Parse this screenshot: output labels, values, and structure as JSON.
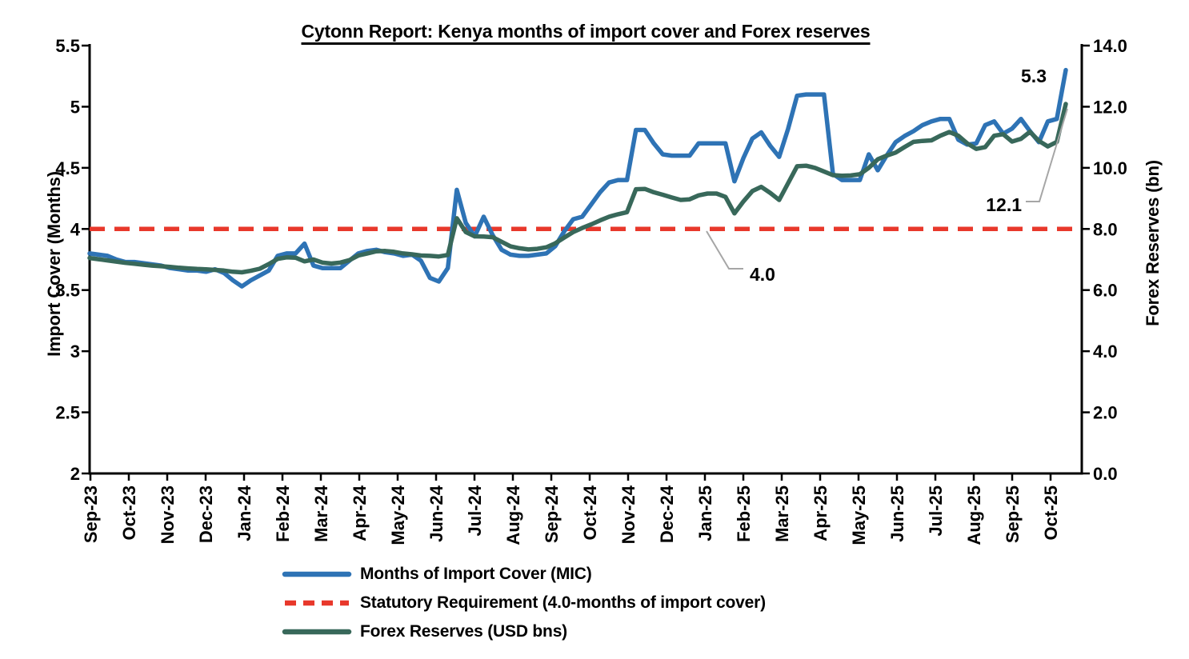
{
  "title": "Cytonn Report: Kenya months of import cover and Forex reserves",
  "chart_data": {
    "type": "line",
    "title": "Cytonn Report: Kenya months of import cover and Forex reserves",
    "x_frequency": "weekly",
    "x_categories_monthly": [
      "Sep-23",
      "Oct-23",
      "Nov-23",
      "Dec-23",
      "Jan-24",
      "Feb-24",
      "Mar-24",
      "Apr-24",
      "May-24",
      "Jun-24",
      "Jul-24",
      "Aug-24",
      "Sep-24",
      "Oct-24",
      "Nov-24",
      "Dec-24",
      "Jan-25",
      "Feb-25",
      "Mar-25",
      "Apr-25",
      "May-25",
      "Jun-25",
      "Jul-25",
      "Aug-25",
      "Sep-25",
      "Oct-25"
    ],
    "left_axis": {
      "label": "Import Cover (Months)",
      "min": 2,
      "max": 5.5,
      "ticks": [
        "5.5",
        "5",
        "4.5",
        "4",
        "3.5",
        "3",
        "2.5",
        "2"
      ]
    },
    "right_axis": {
      "label": "Forex Reserves (bn)",
      "min": 0,
      "max": 14,
      "ticks": [
        "14.0",
        "12.0",
        "10.0",
        "8.0",
        "6.0",
        "4.0",
        "2.0",
        "0.0"
      ]
    },
    "grid": false,
    "legend_position": "bottom",
    "series": [
      {
        "name": "Months of Import Cover (MIC)",
        "axis": "left",
        "color": "#2E73B5",
        "style": "solid",
        "values": [
          3.8,
          3.79,
          3.78,
          3.75,
          3.73,
          3.73,
          3.72,
          3.71,
          3.7,
          3.68,
          3.67,
          3.66,
          3.66,
          3.65,
          3.67,
          3.64,
          3.58,
          3.53,
          3.58,
          3.62,
          3.66,
          3.78,
          3.8,
          3.8,
          3.88,
          3.7,
          3.68,
          3.68,
          3.68,
          3.74,
          3.8,
          3.82,
          3.83,
          3.81,
          3.8,
          3.78,
          3.79,
          3.74,
          3.6,
          3.57,
          3.68,
          4.32,
          4.05,
          3.94,
          4.1,
          3.95,
          3.83,
          3.79,
          3.78,
          3.78,
          3.79,
          3.8,
          3.86,
          3.98,
          4.08,
          4.1,
          4.2,
          4.3,
          4.38,
          4.4,
          4.4,
          4.81,
          4.81,
          4.7,
          4.61,
          4.6,
          4.6,
          4.6,
          4.7,
          4.7,
          4.7,
          4.7,
          4.39,
          4.58,
          4.74,
          4.79,
          4.68,
          4.59,
          4.82,
          5.09,
          5.1,
          5.1,
          5.1,
          4.45,
          4.4,
          4.4,
          4.4,
          4.61,
          4.48,
          4.6,
          4.71,
          4.76,
          4.8,
          4.85,
          4.88,
          4.9,
          4.9,
          4.73,
          4.69,
          4.7,
          4.85,
          4.88,
          4.78,
          4.82,
          4.9,
          4.8,
          4.71,
          4.88,
          4.9,
          5.3
        ]
      },
      {
        "name": "Statutory Requirement (4.0-months of import cover)",
        "axis": "left",
        "color": "#E8382B",
        "style": "dashed",
        "constant": 4.0
      },
      {
        "name": "Forex Reserves (USD bns)",
        "axis": "right",
        "color": "#38685A",
        "style": "solid",
        "values": [
          7.05,
          7.01,
          6.97,
          6.93,
          6.89,
          6.86,
          6.83,
          6.8,
          6.78,
          6.76,
          6.73,
          6.71,
          6.69,
          6.68,
          6.66,
          6.64,
          6.6,
          6.58,
          6.63,
          6.7,
          6.85,
          7.02,
          7.07,
          7.06,
          6.94,
          7.0,
          6.9,
          6.87,
          6.9,
          6.98,
          7.13,
          7.2,
          7.27,
          7.28,
          7.25,
          7.2,
          7.17,
          7.13,
          7.12,
          7.1,
          7.15,
          8.35,
          7.9,
          7.76,
          7.75,
          7.73,
          7.58,
          7.43,
          7.37,
          7.33,
          7.35,
          7.4,
          7.53,
          7.72,
          7.9,
          8.03,
          8.15,
          8.28,
          8.4,
          8.48,
          8.55,
          9.3,
          9.31,
          9.2,
          9.12,
          9.03,
          8.95,
          8.97,
          9.1,
          9.16,
          9.16,
          9.05,
          8.51,
          8.9,
          9.24,
          9.38,
          9.18,
          8.95,
          9.5,
          10.05,
          10.07,
          10.0,
          9.88,
          9.76,
          9.74,
          9.75,
          9.79,
          10.0,
          10.28,
          10.4,
          10.5,
          10.68,
          10.85,
          10.88,
          10.9,
          11.05,
          11.17,
          11.05,
          10.8,
          10.62,
          10.68,
          11.05,
          11.1,
          10.86,
          10.95,
          11.18,
          10.88,
          10.7,
          10.85,
          12.09
        ]
      }
    ],
    "annotations": [
      {
        "text": "5.3",
        "target": "last MIC value"
      },
      {
        "text": "12.1",
        "target": "last Forex reserves value"
      },
      {
        "text": "4.0",
        "target": "statutory requirement line"
      }
    ]
  },
  "legend": {
    "items": [
      {
        "label": "Months of Import Cover (MIC)",
        "color": "#2E73B5",
        "dash": "solid"
      },
      {
        "label": "Statutory Requirement (4.0-months of import cover)",
        "color": "#E8382B",
        "dash": "dashed"
      },
      {
        "label": "Forex Reserves (USD bns)",
        "color": "#38685A",
        "dash": "solid"
      }
    ]
  }
}
